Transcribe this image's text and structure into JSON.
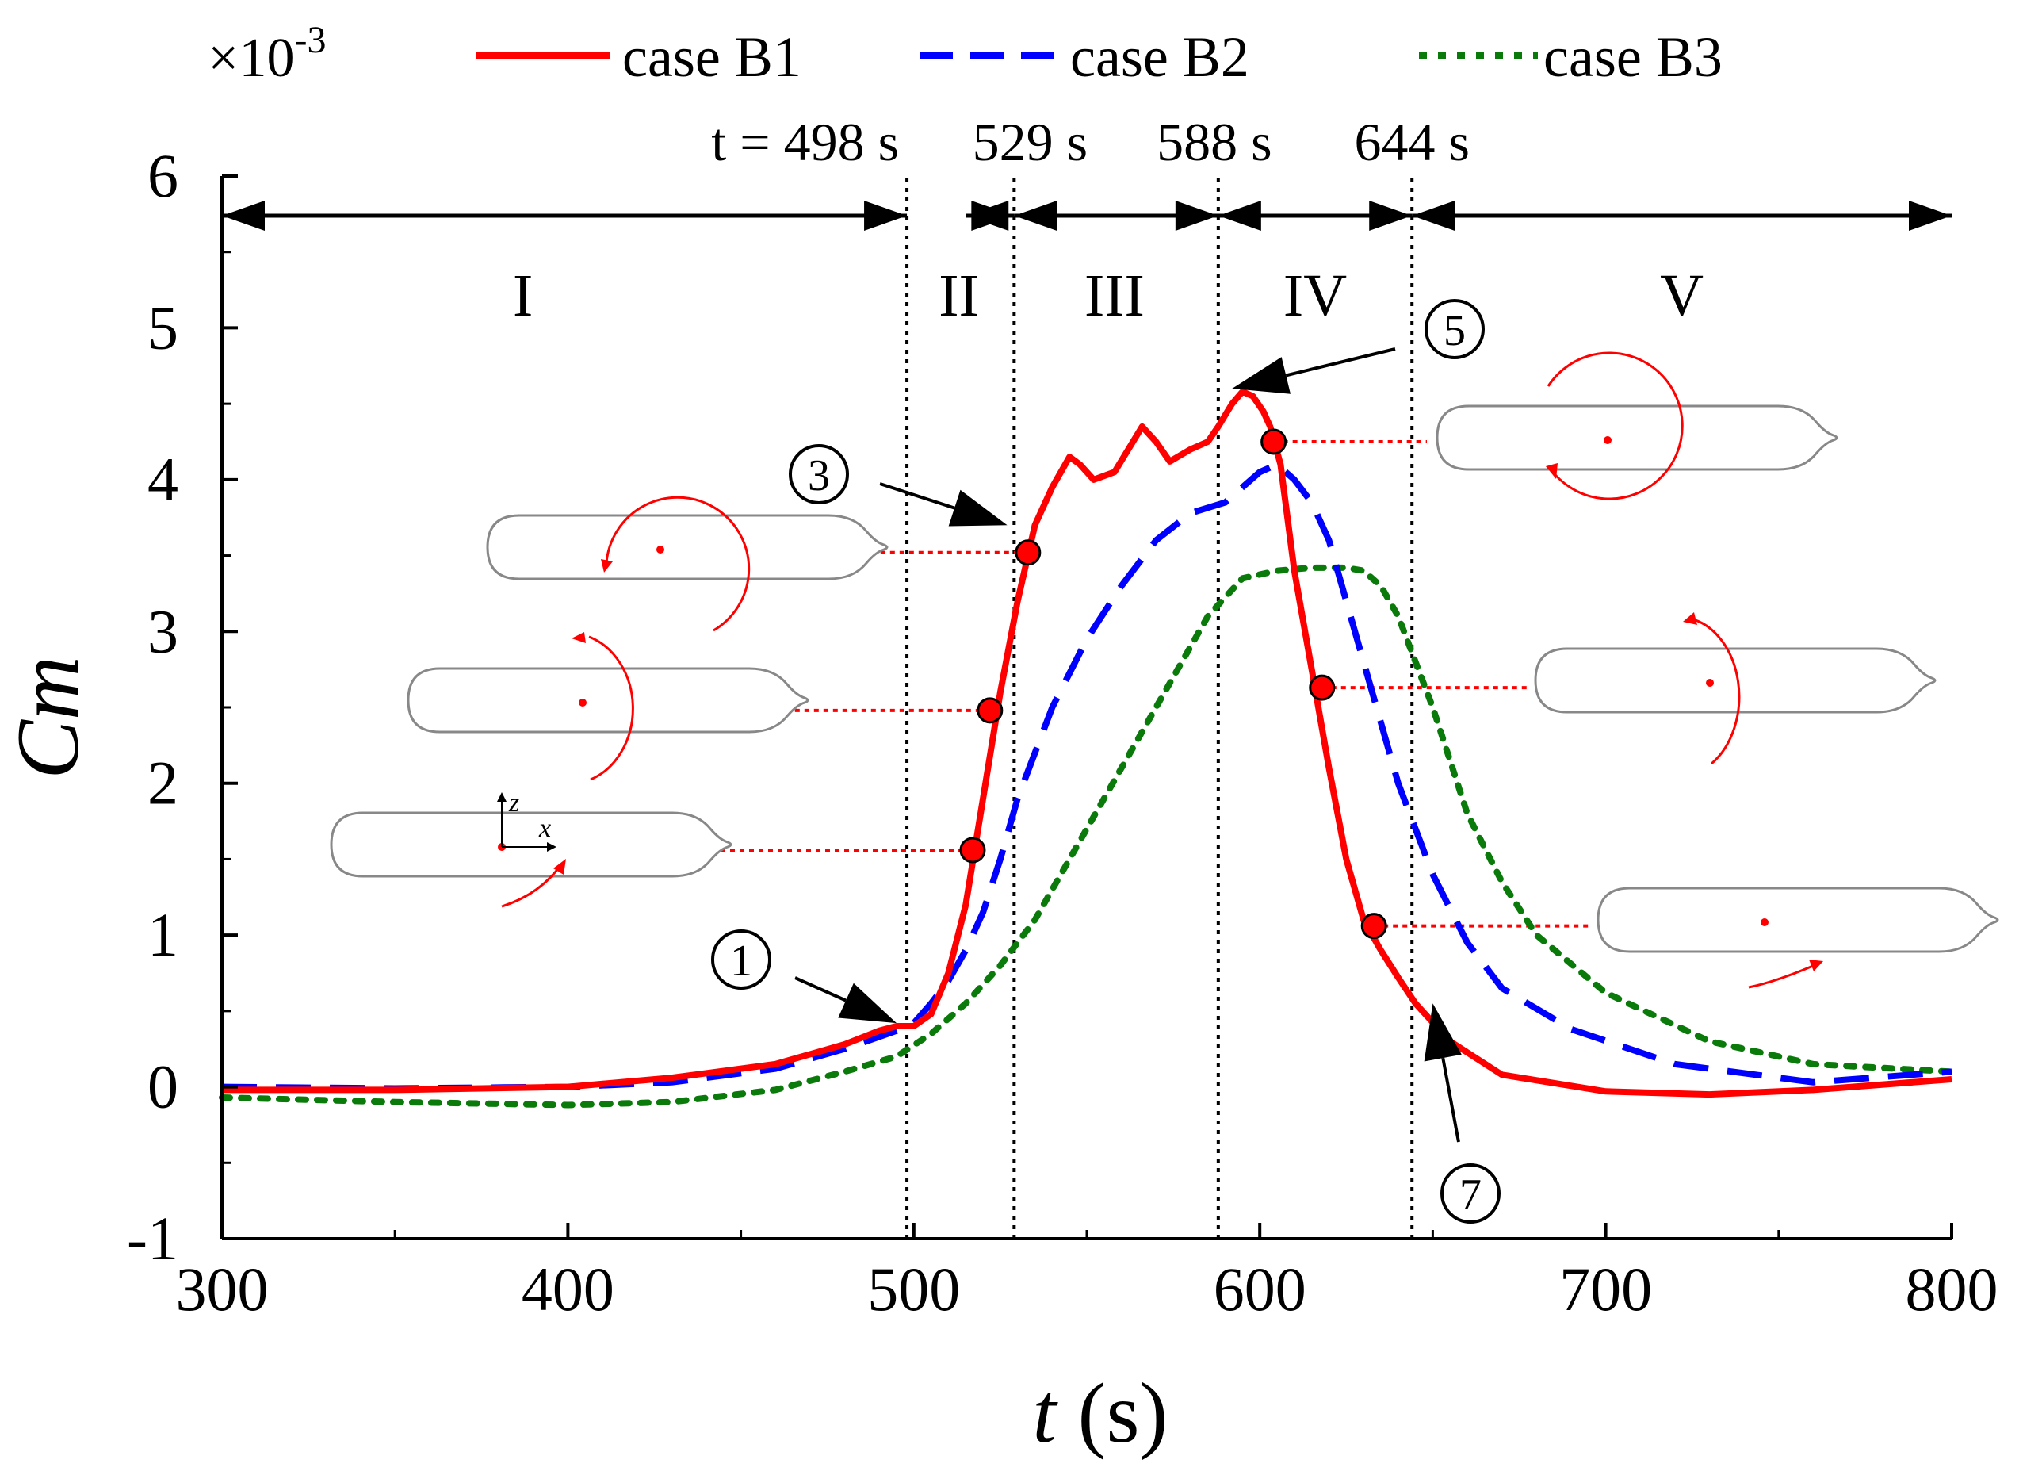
{
  "chart_data": {
    "type": "line",
    "multiplier_label": "×10",
    "multiplier_exp": "-3",
    "xlabel_var": "t",
    "xlabel_unit": " (s)",
    "ylabel": "Cm",
    "xlim": [
      300,
      800
    ],
    "ylim": [
      -1,
      6
    ],
    "xticks": [
      300,
      400,
      500,
      600,
      700,
      800
    ],
    "yticks": [
      -1,
      0,
      1,
      2,
      3,
      4,
      5,
      6
    ],
    "series": [
      {
        "name": "case B1",
        "color": "#ff0000",
        "style": "solid",
        "x": [
          300,
          350,
          400,
          430,
          460,
          480,
          490,
          495,
          500,
          505,
          510,
          515,
          520,
          525,
          530,
          535,
          540,
          545,
          548,
          552,
          558,
          562,
          566,
          570,
          574,
          580,
          585,
          588,
          592,
          595,
          598,
          601,
          603,
          606,
          610,
          615,
          620,
          625,
          630,
          635,
          640,
          645,
          655,
          670,
          700,
          730,
          760,
          800
        ],
        "y": [
          -0.02,
          -0.02,
          0.0,
          0.06,
          0.15,
          0.28,
          0.37,
          0.4,
          0.4,
          0.48,
          0.75,
          1.2,
          1.9,
          2.6,
          3.2,
          3.7,
          3.95,
          4.15,
          4.1,
          4.0,
          4.05,
          4.2,
          4.35,
          4.25,
          4.12,
          4.2,
          4.25,
          4.35,
          4.5,
          4.58,
          4.55,
          4.45,
          4.35,
          4.1,
          3.4,
          2.75,
          2.1,
          1.5,
          1.1,
          0.9,
          0.72,
          0.55,
          0.3,
          0.08,
          -0.03,
          -0.05,
          -0.02,
          0.05
        ]
      },
      {
        "name": "case B2",
        "color": "#0000ff",
        "style": "dashed",
        "x": [
          300,
          350,
          400,
          430,
          460,
          480,
          495,
          500,
          505,
          510,
          515,
          520,
          525,
          530,
          540,
          550,
          560,
          570,
          580,
          590,
          595,
          600,
          605,
          610,
          615,
          620,
          625,
          630,
          640,
          650,
          660,
          670,
          690,
          720,
          760,
          800
        ],
        "y": [
          0.0,
          -0.01,
          0.0,
          0.03,
          0.12,
          0.25,
          0.37,
          0.42,
          0.55,
          0.7,
          0.9,
          1.15,
          1.5,
          1.9,
          2.5,
          2.95,
          3.3,
          3.6,
          3.78,
          3.85,
          3.95,
          4.05,
          4.1,
          4.0,
          3.85,
          3.6,
          3.2,
          2.8,
          2.0,
          1.4,
          0.95,
          0.65,
          0.38,
          0.15,
          0.03,
          0.1
        ]
      },
      {
        "name": "case B3",
        "color": "#0a7a0a",
        "style": "dotted",
        "x": [
          300,
          350,
          400,
          430,
          460,
          480,
          495,
          505,
          515,
          525,
          535,
          545,
          555,
          565,
          575,
          585,
          595,
          605,
          615,
          625,
          630,
          635,
          640,
          650,
          660,
          670,
          680,
          700,
          730,
          760,
          800
        ],
        "y": [
          -0.07,
          -0.1,
          -0.12,
          -0.1,
          -0.02,
          0.1,
          0.2,
          0.35,
          0.55,
          0.8,
          1.1,
          1.5,
          1.9,
          2.3,
          2.7,
          3.1,
          3.35,
          3.4,
          3.42,
          3.42,
          3.4,
          3.3,
          3.1,
          2.5,
          1.8,
          1.35,
          1.0,
          0.62,
          0.3,
          0.15,
          0.1
        ]
      }
    ],
    "vlines": [
      498,
      529,
      588,
      644
    ],
    "time_labels": [
      "t = 498 s",
      "529 s",
      "588 s",
      "644 s"
    ],
    "region_bounds": [
      300,
      498,
      515,
      529,
      588,
      644,
      800
    ],
    "region_labels": [
      "I",
      "II",
      "III",
      "IV",
      "V"
    ],
    "markers": [
      {
        "x": 517,
        "y": 1.56
      },
      {
        "x": 522,
        "y": 2.48
      },
      {
        "x": 533,
        "y": 3.52
      },
      {
        "x": 604,
        "y": 4.25
      },
      {
        "x": 618,
        "y": 2.63
      },
      {
        "x": 633,
        "y": 1.06
      }
    ],
    "callouts": [
      {
        "label": "1",
        "x": 495,
        "y": 0.42
      },
      {
        "label": "3",
        "x": 527,
        "y": 3.7
      },
      {
        "label": "5",
        "x": 592,
        "y": 4.6
      },
      {
        "label": "7",
        "x": 650,
        "y": 0.55
      }
    ],
    "axis_labels": {
      "z": "z",
      "x": "x"
    }
  }
}
